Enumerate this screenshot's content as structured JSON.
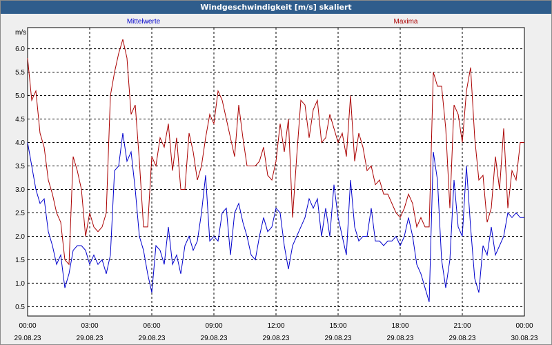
{
  "window": {
    "title": "Windgeschwindigkeit [m/s] skaliert"
  },
  "colors": {
    "mean": "#0000cc",
    "max": "#aa0000",
    "grid": "#000000",
    "plot_bg": "#ffffff",
    "window_bg": "#efefef",
    "title_bg": "#2f5d8c"
  },
  "chart_data": {
    "type": "line",
    "title": "Windgeschwindigkeit [m/s] skaliert",
    "ylabel": "m/s",
    "xlabel": "",
    "ylim": [
      0.3,
      6.45
    ],
    "y_ticks": [
      "0.5",
      "1.0",
      "1.5",
      "2.0",
      "2.5",
      "3.0",
      "3.5",
      "4.0",
      "4.5",
      "5.0",
      "5.5",
      "6.0"
    ],
    "x_ticks": [
      {
        "time": "00:00",
        "date": "29.08.23"
      },
      {
        "time": "03:00",
        "date": "29.08.23"
      },
      {
        "time": "06:00",
        "date": "29.08.23"
      },
      {
        "time": "09:00",
        "date": "29.08.23"
      },
      {
        "time": "12:00",
        "date": "29.08.23"
      },
      {
        "time": "15:00",
        "date": "29.08.23"
      },
      {
        "time": "18:00",
        "date": "29.08.23"
      },
      {
        "time": "21:00",
        "date": "29.08.23"
      },
      {
        "time": "00:00",
        "date": "30.08.23"
      }
    ],
    "x_unit": "hours from 29.08.23 00:00",
    "xlim": [
      0,
      24
    ],
    "grid": true,
    "series": [
      {
        "name": "Mittelwerte",
        "color": "#0000cc",
        "x": [
          0.0,
          0.2,
          0.4,
          0.6,
          0.8,
          1.0,
          1.2,
          1.4,
          1.6,
          1.8,
          2.0,
          2.2,
          2.4,
          2.6,
          2.8,
          3.0,
          3.2,
          3.4,
          3.6,
          3.8,
          4.0,
          4.2,
          4.4,
          4.6,
          4.8,
          5.0,
          5.2,
          5.4,
          5.6,
          5.8,
          6.0,
          6.2,
          6.4,
          6.6,
          6.8,
          7.0,
          7.2,
          7.4,
          7.6,
          7.8,
          8.0,
          8.2,
          8.4,
          8.6,
          8.8,
          9.0,
          9.2,
          9.4,
          9.6,
          9.8,
          10.0,
          10.2,
          10.4,
          10.6,
          10.8,
          11.0,
          11.2,
          11.4,
          11.6,
          11.8,
          12.0,
          12.2,
          12.4,
          12.6,
          12.8,
          13.0,
          13.2,
          13.4,
          13.6,
          13.8,
          14.0,
          14.2,
          14.4,
          14.6,
          14.8,
          15.0,
          15.2,
          15.4,
          15.6,
          15.8,
          16.0,
          16.2,
          16.4,
          16.6,
          16.8,
          17.0,
          17.2,
          17.4,
          17.6,
          17.8,
          18.0,
          18.2,
          18.4,
          18.6,
          18.8,
          19.0,
          19.2,
          19.4,
          19.6,
          19.8,
          20.0,
          20.2,
          20.4,
          20.6,
          20.8,
          21.0,
          21.2,
          21.4,
          21.6,
          21.8,
          22.0,
          22.2,
          22.4,
          22.6,
          22.8,
          23.0,
          23.2,
          23.4,
          23.6,
          23.8,
          24.0
        ],
        "values": [
          4.0,
          3.5,
          3.0,
          2.7,
          2.8,
          2.1,
          1.8,
          1.4,
          1.6,
          0.9,
          1.2,
          1.7,
          1.8,
          1.8,
          1.7,
          1.4,
          1.6,
          1.4,
          1.5,
          1.2,
          1.6,
          3.4,
          3.5,
          4.2,
          3.6,
          3.8,
          3.0,
          2.0,
          1.7,
          1.2,
          0.8,
          1.8,
          1.7,
          1.4,
          2.2,
          1.4,
          1.6,
          1.2,
          1.8,
          2.0,
          1.7,
          1.9,
          2.5,
          3.3,
          1.9,
          2.0,
          1.9,
          2.5,
          2.6,
          1.6,
          2.5,
          2.7,
          2.3,
          2.0,
          1.6,
          1.5,
          2.0,
          2.4,
          2.1,
          2.2,
          2.6,
          2.5,
          1.8,
          1.3,
          1.8,
          2.0,
          2.2,
          2.4,
          2.8,
          2.6,
          2.8,
          2.0,
          2.6,
          2.0,
          3.1,
          2.4,
          2.0,
          1.6,
          3.2,
          2.2,
          1.9,
          2.0,
          2.0,
          2.6,
          1.9,
          1.9,
          1.8,
          1.9,
          1.9,
          2.0,
          1.8,
          2.0,
          2.4,
          2.0,
          1.4,
          1.2,
          0.9,
          0.6,
          3.8,
          3.2,
          1.5,
          0.9,
          1.5,
          3.2,
          2.2,
          2.0,
          3.5,
          2.2,
          1.1,
          0.8,
          1.8,
          1.6,
          2.2,
          1.6,
          1.8,
          2.0,
          2.5,
          2.4,
          2.5,
          2.4,
          2.4
        ],
        "note": ""
      },
      {
        "name": "Maxima",
        "color": "#aa0000",
        "x": [
          0.0,
          0.2,
          0.4,
          0.6,
          0.8,
          1.0,
          1.2,
          1.4,
          1.6,
          1.8,
          2.0,
          2.2,
          2.4,
          2.6,
          2.8,
          3.0,
          3.2,
          3.4,
          3.6,
          3.8,
          4.0,
          4.2,
          4.4,
          4.6,
          4.8,
          5.0,
          5.2,
          5.4,
          5.6,
          5.8,
          6.0,
          6.2,
          6.4,
          6.6,
          6.8,
          7.0,
          7.2,
          7.4,
          7.6,
          7.8,
          8.0,
          8.2,
          8.4,
          8.6,
          8.8,
          9.0,
          9.2,
          9.4,
          9.6,
          9.8,
          10.0,
          10.2,
          10.4,
          10.6,
          10.8,
          11.0,
          11.2,
          11.4,
          11.6,
          11.8,
          12.0,
          12.2,
          12.4,
          12.6,
          12.8,
          13.0,
          13.2,
          13.4,
          13.6,
          13.8,
          14.0,
          14.2,
          14.4,
          14.6,
          14.8,
          15.0,
          15.2,
          15.4,
          15.6,
          15.8,
          16.0,
          16.2,
          16.4,
          16.6,
          16.8,
          17.0,
          17.2,
          17.4,
          17.6,
          17.8,
          18.0,
          18.2,
          18.4,
          18.6,
          18.8,
          19.0,
          19.2,
          19.4,
          19.6,
          19.8,
          20.0,
          20.2,
          20.4,
          20.6,
          20.8,
          21.0,
          21.2,
          21.4,
          21.6,
          21.8,
          22.0,
          22.2,
          22.4,
          22.6,
          22.8,
          23.0,
          23.2,
          23.4,
          23.6,
          23.8,
          24.0
        ],
        "values": [
          5.8,
          4.9,
          5.1,
          4.2,
          3.9,
          3.2,
          2.9,
          2.5,
          2.3,
          1.5,
          1.4,
          3.7,
          3.4,
          3.0,
          2.0,
          2.5,
          2.2,
          2.1,
          2.2,
          2.5,
          5.0,
          5.5,
          5.9,
          6.2,
          5.8,
          4.6,
          4.8,
          3.6,
          2.2,
          2.2,
          3.7,
          3.5,
          4.1,
          3.9,
          4.4,
          3.4,
          4.1,
          3.0,
          3.0,
          4.2,
          3.8,
          3.2,
          3.5,
          4.1,
          4.6,
          4.4,
          5.1,
          4.9,
          4.5,
          4.1,
          3.7,
          4.8,
          4.1,
          3.5,
          3.5,
          3.5,
          3.6,
          3.9,
          3.3,
          3.2,
          3.6,
          4.4,
          3.8,
          4.5,
          2.4,
          3.7,
          4.9,
          4.8,
          4.1,
          4.7,
          4.9,
          4.0,
          4.1,
          4.6,
          4.3,
          4.0,
          4.2,
          3.7,
          5.0,
          3.6,
          4.2,
          3.9,
          3.4,
          3.5,
          3.1,
          3.2,
          2.9,
          2.9,
          2.7,
          2.5,
          2.4,
          2.6,
          2.9,
          2.7,
          2.2,
          2.4,
          2.2,
          2.2,
          5.5,
          5.2,
          5.2,
          4.3,
          2.6,
          4.8,
          4.6,
          4.0,
          5.1,
          5.6,
          4.1,
          3.2,
          3.3,
          2.3,
          2.6,
          3.7,
          3.0,
          4.3,
          2.6,
          3.4,
          3.2,
          4.0,
          4.0
        ],
        "note": ""
      }
    ],
    "legend": "top, above plot (series names as colored labels)"
  }
}
